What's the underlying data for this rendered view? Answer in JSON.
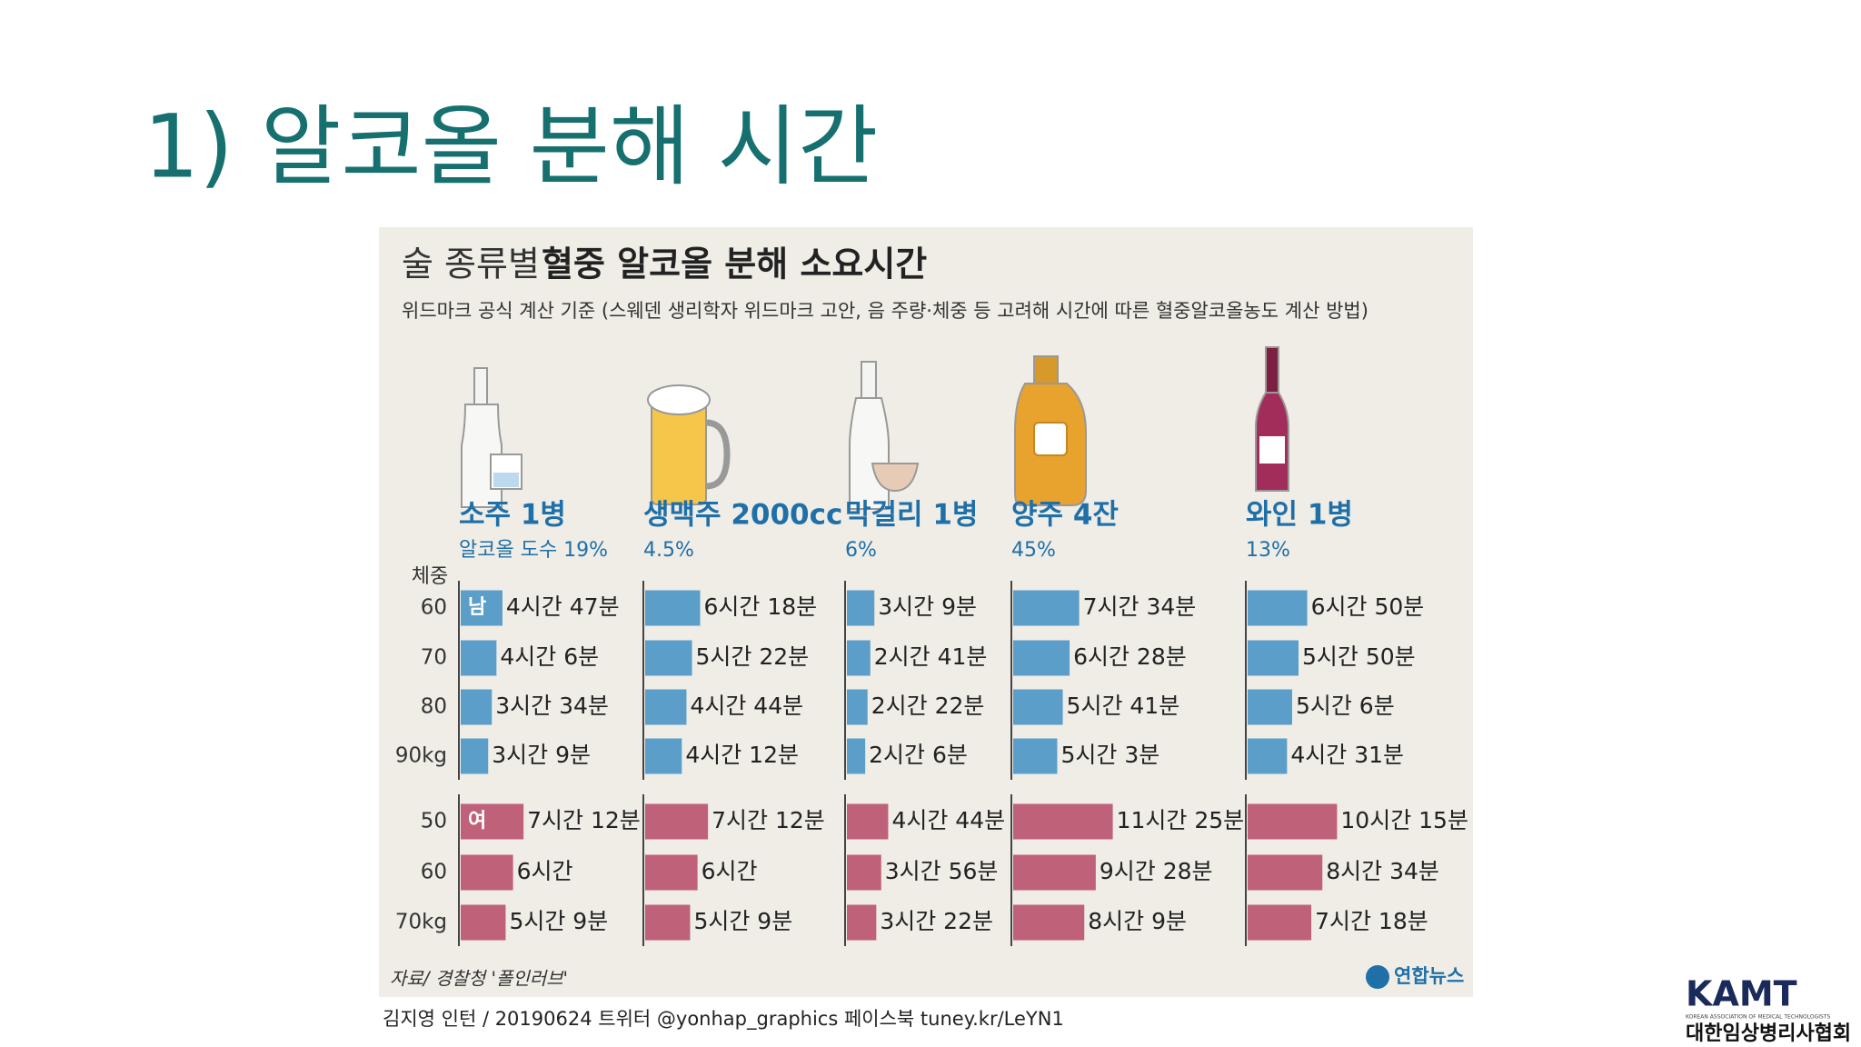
{
  "slide_title": "1) 알코올 분해 시간",
  "chart_data": {
    "type": "bar",
    "title": [
      "술 종류별",
      "혈중 알코올 분해 소요시간"
    ],
    "subtitle": "위드마크 공식 계산 기준 (스웨덴 생리학자 위드마크 고안, 음 주량·체중 등 고려해 시간에 따른 혈중알코올농도 계산 방법)",
    "weight_label": "체중",
    "groups": [
      {
        "name": "남",
        "color": "#5b9ec9",
        "categories": [
          "60",
          "70",
          "80",
          "90kg"
        ]
      },
      {
        "name": "여",
        "color": "#c0617a",
        "categories": [
          "50",
          "60",
          "70kg"
        ]
      }
    ],
    "panels": [
      {
        "name": "소주 1병",
        "abv": "알코올 도수 19%",
        "values": [
          [
            287,
            246,
            214,
            189
          ],
          [
            432,
            360,
            309
          ]
        ],
        "value_labels": [
          [
            "4시간 47분",
            "4시간 6분",
            "3시간 34분",
            "3시간 9분"
          ],
          [
            "7시간 12분",
            "6시간",
            "5시간 9분"
          ]
        ]
      },
      {
        "name": "생맥주 2000cc",
        "abv": "4.5%",
        "values": [
          [
            378,
            322,
            284,
            252
          ],
          [
            432,
            360,
            309
          ]
        ],
        "value_labels": [
          [
            "6시간 18분",
            "5시간 22분",
            "4시간 44분",
            "4시간 12분"
          ],
          [
            "7시간 12분",
            "6시간",
            "5시간 9분"
          ]
        ]
      },
      {
        "name": "막걸리 1병",
        "abv": "6%",
        "values": [
          [
            189,
            161,
            142,
            126
          ],
          [
            284,
            236,
            202
          ]
        ],
        "value_labels": [
          [
            "3시간 9분",
            "2시간 41분",
            "2시간 22분",
            "2시간 6분"
          ],
          [
            "4시간 44분",
            "3시간 56분",
            "3시간 22분"
          ]
        ]
      },
      {
        "name": "양주 4잔",
        "abv": "45%",
        "values": [
          [
            454,
            388,
            341,
            303
          ],
          [
            685,
            568,
            489
          ]
        ],
        "value_labels": [
          [
            "7시간 34분",
            "6시간 28분",
            "5시간 41분",
            "5시간 3분"
          ],
          [
            "11시간 25분",
            "9시간 28분",
            "8시간 9분"
          ]
        ]
      },
      {
        "name": "와인 1병",
        "abv": "13%",
        "values": [
          [
            410,
            350,
            306,
            271
          ],
          [
            615,
            514,
            438
          ]
        ],
        "value_labels": [
          [
            "6시간 50분",
            "5시간 50분",
            "5시간 6분",
            "4시간 31분"
          ],
          [
            "10시간 15분",
            "8시간 34분",
            "7시간 18분"
          ]
        ]
      }
    ],
    "source": "자료/ 경찰청 '폴인러브'",
    "publisher": "연합뉴스"
  },
  "credit": "김지영 인턴 / 20190624 트위터 @yonhap_graphics 페이스북 tuney.kr/LeYN1",
  "logo": {
    "mark": "KAMT",
    "english": "KOREAN ASSOCIATION OF MEDICAL TECHNOLOGISTS",
    "name": "대한임상병리사협회"
  }
}
